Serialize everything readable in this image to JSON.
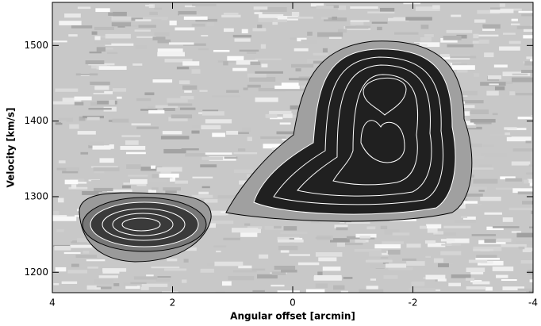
{
  "chart_data": {
    "type": "image",
    "xlabel": "Angular offset [arcmin]",
    "ylabel": "Velocity [km/s]",
    "xlim": [
      4,
      -4
    ],
    "ylim": [
      1173,
      1557
    ],
    "xticks": [
      4,
      2,
      0,
      -2,
      -4
    ],
    "yticks": [
      1200,
      1300,
      1400,
      1500
    ]
  }
}
